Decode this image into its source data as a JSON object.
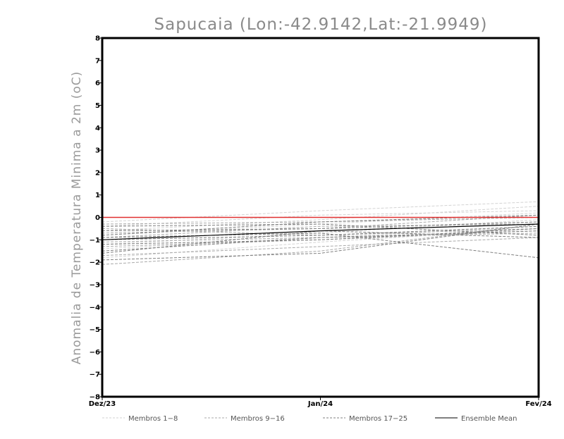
{
  "chart_data": {
    "type": "line",
    "title": "Sapucaia (Lon:-42.9142,Lat:-21.9949)",
    "xlabel": "",
    "ylabel": "Anomalia de Temperatura Minima a 2m (oC)",
    "x": [
      "Dez/23",
      "Jan/24",
      "Fev/24"
    ],
    "ylim": [
      -8,
      8
    ],
    "yticks": [
      -8,
      -7,
      -6,
      -5,
      -4,
      -3,
      -2,
      -1,
      0,
      1,
      2,
      3,
      4,
      5,
      6,
      7,
      8
    ],
    "grid": false,
    "legend_position": "bottom",
    "legend": [
      {
        "label": "Membros 1-8",
        "color": "#d3d3d3",
        "style": "dashed"
      },
      {
        "label": "Membros 9-16",
        "color": "#a9a9a9",
        "style": "dashed"
      },
      {
        "label": "Membros 17-25",
        "color": "#808080",
        "style": "dashed"
      },
      {
        "label": "Ensemble Mean",
        "color": "#000000",
        "style": "solid"
      }
    ],
    "series": [
      {
        "group": "Membros 1-8",
        "color": "#d3d3d3",
        "values": [
          -0.2,
          0.3,
          0.7
        ]
      },
      {
        "group": "Membros 1-8",
        "color": "#d3d3d3",
        "values": [
          -0.6,
          -0.1,
          0.5
        ]
      },
      {
        "group": "Membros 1-8",
        "color": "#d3d3d3",
        "values": [
          -1.0,
          -0.6,
          -0.2
        ]
      },
      {
        "group": "Membros 1-8",
        "color": "#d3d3d3",
        "values": [
          -1.4,
          -0.9,
          -0.4
        ]
      },
      {
        "group": "Membros 1-8",
        "color": "#d3d3d3",
        "values": [
          -0.8,
          -0.3,
          0.2
        ]
      },
      {
        "group": "Membros 1-8",
        "color": "#d3d3d3",
        "values": [
          -1.8,
          -1.1,
          -0.5
        ]
      },
      {
        "group": "Membros 1-8",
        "color": "#d3d3d3",
        "values": [
          -0.4,
          0.1,
          0.3
        ]
      },
      {
        "group": "Membros 1-8",
        "color": "#d3d3d3",
        "values": [
          -1.2,
          -0.7,
          -0.1
        ]
      },
      {
        "group": "Membros 9-16",
        "color": "#a9a9a9",
        "values": [
          -0.3,
          -0.2,
          0.0
        ]
      },
      {
        "group": "Membros 9-16",
        "color": "#a9a9a9",
        "values": [
          -0.5,
          -0.8,
          -0.5
        ]
      },
      {
        "group": "Membros 9-16",
        "color": "#a9a9a9",
        "values": [
          -0.9,
          -0.4,
          -0.3
        ]
      },
      {
        "group": "Membros 9-16",
        "color": "#a9a9a9",
        "values": [
          -1.3,
          -1.0,
          -0.6
        ]
      },
      {
        "group": "Membros 9-16",
        "color": "#a9a9a9",
        "values": [
          -1.7,
          -1.3,
          -0.9
        ]
      },
      {
        "group": "Membros 9-16",
        "color": "#a9a9a9",
        "values": [
          -2.1,
          -1.5,
          -0.3
        ]
      },
      {
        "group": "Membros 9-16",
        "color": "#a9a9a9",
        "values": [
          -0.7,
          -0.5,
          0.1
        ]
      },
      {
        "group": "Membros 9-16",
        "color": "#a9a9a9",
        "values": [
          -1.1,
          -0.9,
          -0.7
        ]
      },
      {
        "group": "Membros 17-25",
        "color": "#808080",
        "values": [
          -0.4,
          -0.3,
          -0.8
        ]
      },
      {
        "group": "Membros 17-25",
        "color": "#808080",
        "values": [
          -0.6,
          -0.5,
          -0.2
        ]
      },
      {
        "group": "Membros 17-25",
        "color": "#808080",
        "values": [
          -0.9,
          -0.7,
          -1.8
        ]
      },
      {
        "group": "Membros 17-25",
        "color": "#808080",
        "values": [
          -1.0,
          -0.8,
          -0.4
        ]
      },
      {
        "group": "Membros 17-25",
        "color": "#808080",
        "values": [
          -1.5,
          -0.9,
          -0.6
        ]
      },
      {
        "group": "Membros 17-25",
        "color": "#808080",
        "values": [
          -1.9,
          -1.6,
          -0.3
        ]
      },
      {
        "group": "Membros 17-25",
        "color": "#808080",
        "values": [
          -1.6,
          -0.6,
          -0.9
        ]
      },
      {
        "group": "Membros 17-25",
        "color": "#808080",
        "values": [
          -0.8,
          -0.2,
          0.1
        ]
      },
      {
        "group": "Membros 17-25",
        "color": "#808080",
        "values": [
          -1.2,
          -1.0,
          -0.5
        ]
      }
    ],
    "mean": {
      "name": "Ensemble Mean",
      "color": "#000000",
      "values": [
        -1.0,
        -0.6,
        -0.3
      ]
    },
    "reference_line": {
      "color": "#e03030",
      "values": [
        0.0,
        0.0,
        0.0
      ]
    }
  }
}
